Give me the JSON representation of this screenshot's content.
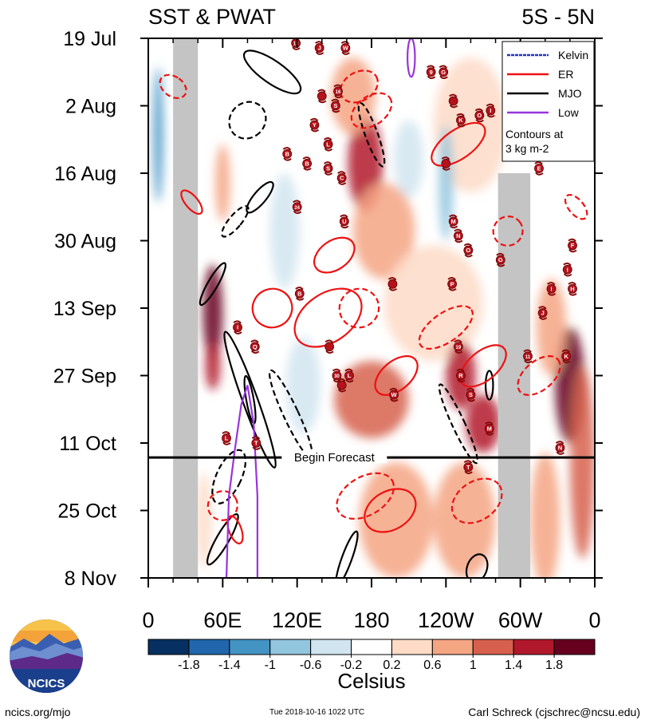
{
  "chart_data": {
    "type": "heatmap",
    "title_left": "SST & PWAT",
    "title_right": "5S - 5N",
    "x_ticks": [
      {
        "lon": 0,
        "label": "0"
      },
      {
        "lon": 60,
        "label": "60E"
      },
      {
        "lon": 120,
        "label": "120E"
      },
      {
        "lon": 180,
        "label": "180"
      },
      {
        "lon": 240,
        "label": "120W"
      },
      {
        "lon": 300,
        "label": "60W"
      },
      {
        "lon": 360,
        "label": "0"
      }
    ],
    "y_ticks": [
      {
        "day": 0,
        "label": "19 Jul"
      },
      {
        "day": 14,
        "label": "2 Aug"
      },
      {
        "day": 28,
        "label": "16 Aug"
      },
      {
        "day": 42,
        "label": "30 Aug"
      },
      {
        "day": 56,
        "label": "13 Sep"
      },
      {
        "day": 70,
        "label": "27 Sep"
      },
      {
        "day": 84,
        "label": "11 Oct"
      },
      {
        "day": 98,
        "label": "25 Oct"
      },
      {
        "day": 112,
        "label": "8 Nov"
      }
    ],
    "x_range": [
      0,
      360
    ],
    "y_range": [
      0,
      112
    ],
    "forecast_begin_day": 87,
    "forecast_label": "Begin Forecast",
    "land_bands": [
      {
        "lon_start": 20,
        "lon_end": 40,
        "day_start": 0,
        "day_end": 112
      },
      {
        "lon_start": 282,
        "lon_end": 308,
        "day_start": 28,
        "day_end": 112
      }
    ],
    "legend": {
      "entries": [
        {
          "label": "Kelvin",
          "color": "#2233cc"
        },
        {
          "label": "ER",
          "color": "#ee1111"
        },
        {
          "label": "MJO",
          "color": "#000000"
        },
        {
          "label": "Low",
          "color": "#9933dd"
        }
      ],
      "note": "Contours at\n3 kg m-2",
      "position": "top-right"
    },
    "colorbar": {
      "levels": [
        -1.8,
        -1.4,
        -1,
        -0.6,
        -0.2,
        0.2,
        0.6,
        1,
        1.4,
        1.8
      ],
      "labels": [
        "-1.8",
        "-1.4",
        "-1",
        "-0.6",
        "-0.2",
        "0.2",
        "0.6",
        "1",
        "1.4",
        "1.8"
      ],
      "colors": [
        "#053061",
        "#2166ac",
        "#4393c3",
        "#92c5de",
        "#d1e5f0",
        "#ffffff",
        "#fddbc7",
        "#f4a582",
        "#d6604d",
        "#b2182b",
        "#67001f"
      ],
      "units": "Celsius"
    },
    "anomaly_patches": [
      {
        "lon": 52,
        "day": 57,
        "r_lon": 8,
        "r_day": 10,
        "v": 1.9
      },
      {
        "lon": 52,
        "day": 68,
        "r_lon": 6,
        "r_day": 5,
        "v": 1.5
      },
      {
        "lon": 175,
        "day": 26,
        "r_lon": 14,
        "r_day": 10,
        "v": 1.5
      },
      {
        "lon": 165,
        "day": 12,
        "r_lon": 18,
        "r_day": 8,
        "v": 0.9
      },
      {
        "lon": 190,
        "day": 40,
        "r_lon": 25,
        "r_day": 10,
        "v": 0.7
      },
      {
        "lon": 260,
        "day": 18,
        "r_lon": 30,
        "r_day": 14,
        "v": 0.6
      },
      {
        "lon": 230,
        "day": 55,
        "r_lon": 40,
        "r_day": 12,
        "v": 0.5
      },
      {
        "lon": 180,
        "day": 75,
        "r_lon": 30,
        "r_day": 8,
        "v": 1.3
      },
      {
        "lon": 252,
        "day": 70,
        "r_lon": 12,
        "r_day": 7,
        "v": 1.6
      },
      {
        "lon": 270,
        "day": 80,
        "r_lon": 14,
        "r_day": 6,
        "v": 1.6
      },
      {
        "lon": 340,
        "day": 72,
        "r_lon": 12,
        "r_day": 12,
        "v": 2.0
      },
      {
        "lon": 325,
        "day": 60,
        "r_lon": 12,
        "r_day": 10,
        "v": 1.0
      },
      {
        "lon": 350,
        "day": 88,
        "r_lon": 10,
        "r_day": 20,
        "v": 1.4
      },
      {
        "lon": 200,
        "day": 100,
        "r_lon": 30,
        "r_day": 12,
        "v": 0.9
      },
      {
        "lon": 255,
        "day": 100,
        "r_lon": 25,
        "r_day": 12,
        "v": 0.8
      },
      {
        "lon": 320,
        "day": 100,
        "r_lon": 12,
        "r_day": 14,
        "v": 0.7
      },
      {
        "lon": 110,
        "day": 40,
        "r_lon": 12,
        "r_day": 12,
        "v": -0.4
      },
      {
        "lon": 240,
        "day": 30,
        "r_lon": 6,
        "r_day": 12,
        "v": -0.8
      },
      {
        "lon": 8,
        "day": 20,
        "r_lon": 4,
        "r_day": 14,
        "v": -1.2
      },
      {
        "lon": 125,
        "day": 72,
        "r_lon": 14,
        "r_day": 10,
        "v": -0.5
      },
      {
        "lon": 210,
        "day": 25,
        "r_lon": 12,
        "r_day": 8,
        "v": -0.3
      },
      {
        "lon": 60,
        "day": 30,
        "r_lon": 6,
        "r_day": 8,
        "v": 0.9
      },
      {
        "lon": 45,
        "day": 100,
        "r_lon": 6,
        "r_day": 10,
        "v": 0.4
      }
    ],
    "contours": [
      {
        "kind": "MJO",
        "lon": 100,
        "day": 7,
        "r_lon": 9,
        "r_day": 7,
        "rot": -55,
        "dashed": false
      },
      {
        "kind": "MJO",
        "lon": 80,
        "day": 17,
        "r_lon": 14,
        "r_day": 4,
        "rot": 45,
        "dashed": true
      },
      {
        "kind": "MJO",
        "lon": 180,
        "day": 20,
        "r_lon": 5,
        "r_day": 7,
        "rot": -20,
        "dashed": true
      },
      {
        "kind": "MJO",
        "lon": 90,
        "day": 33,
        "r_lon": 5,
        "r_day": 4,
        "rot": 40,
        "dashed": false
      },
      {
        "kind": "MJO",
        "lon": 70,
        "day": 38,
        "r_lon": 5,
        "r_day": 4,
        "rot": 40,
        "dashed": true
      },
      {
        "kind": "MJO",
        "lon": 52,
        "day": 51,
        "r_lon": 4,
        "r_day": 5,
        "rot": 30,
        "dashed": false
      },
      {
        "kind": "MJO",
        "lon": 82,
        "day": 75,
        "r_lon": 6,
        "r_day": 15,
        "rot": -20,
        "dashed": false
      },
      {
        "kind": "MJO",
        "lon": 82,
        "day": 75,
        "r_lon": 3,
        "r_day": 5,
        "rot": -10,
        "dashed": false
      },
      {
        "kind": "MJO",
        "lon": 115,
        "day": 78,
        "r_lon": 6,
        "r_day": 10,
        "rot": -25,
        "dashed": true
      },
      {
        "kind": "MJO",
        "lon": 65,
        "day": 91,
        "r_lon": 10,
        "r_day": 6,
        "rot": 25,
        "dashed": true
      },
      {
        "kind": "MJO",
        "lon": 60,
        "day": 104,
        "r_lon": 5,
        "r_day": 6,
        "rot": 30,
        "dashed": false
      },
      {
        "kind": "MJO",
        "lon": 160,
        "day": 108,
        "r_lon": 4,
        "r_day": 6,
        "rot": 20,
        "dashed": false
      },
      {
        "kind": "MJO",
        "lon": 250,
        "day": 80,
        "r_lon": 5,
        "r_day": 9,
        "rot": -25,
        "dashed": true
      },
      {
        "kind": "MJO",
        "lon": 275,
        "day": 72,
        "r_lon": 3,
        "r_day": 3,
        "rot": 0,
        "dashed": false
      },
      {
        "kind": "MJO",
        "lon": 265,
        "day": 110,
        "r_lon": 8,
        "r_day": 3,
        "rot": 20,
        "dashed": false
      },
      {
        "kind": "ER",
        "lon": 145,
        "day": 58,
        "r_lon": 30,
        "r_day": 5,
        "rot": -35,
        "dashed": false
      },
      {
        "kind": "ER",
        "lon": 150,
        "day": 45,
        "r_lon": 18,
        "r_day": 3,
        "rot": -35,
        "dashed": false
      },
      {
        "kind": "ER",
        "lon": 100,
        "day": 56,
        "r_lon": 16,
        "r_day": 4,
        "rot": -20,
        "dashed": false
      },
      {
        "kind": "ER",
        "lon": 170,
        "day": 56,
        "r_lon": 16,
        "r_day": 4,
        "rot": -30,
        "dashed": true
      },
      {
        "kind": "ER",
        "lon": 240,
        "day": 60,
        "r_lon": 25,
        "r_day": 3,
        "rot": -35,
        "dashed": true
      },
      {
        "kind": "ER",
        "lon": 270,
        "day": 68,
        "r_lon": 22,
        "r_day": 3,
        "rot": -40,
        "dashed": false
      },
      {
        "kind": "ER",
        "lon": 250,
        "day": 22,
        "r_lon": 25,
        "r_day": 3,
        "rot": -35,
        "dashed": false
      },
      {
        "kind": "ER",
        "lon": 180,
        "day": 15,
        "r_lon": 18,
        "r_day": 3,
        "rot": -35,
        "dashed": true
      },
      {
        "kind": "ER",
        "lon": 170,
        "day": 10,
        "r_lon": 16,
        "r_day": 3,
        "rot": -30,
        "dashed": true
      },
      {
        "kind": "ER",
        "lon": 20,
        "day": 10,
        "r_lon": 8,
        "r_day": 3,
        "rot": -55,
        "dashed": true
      },
      {
        "kind": "ER",
        "lon": 35,
        "day": 34,
        "r_lon": 5,
        "r_day": 3,
        "rot": -40,
        "dashed": false
      },
      {
        "kind": "ER",
        "lon": 195,
        "day": 98,
        "r_lon": 22,
        "r_day": 4,
        "rot": -30,
        "dashed": false
      },
      {
        "kind": "ER",
        "lon": 175,
        "day": 95,
        "r_lon": 25,
        "r_day": 4,
        "rot": -30,
        "dashed": true
      },
      {
        "kind": "ER",
        "lon": 265,
        "day": 96,
        "r_lon": 22,
        "r_day": 4,
        "rot": -35,
        "dashed": true
      },
      {
        "kind": "ER",
        "lon": 315,
        "day": 70,
        "r_lon": 20,
        "r_day": 3,
        "rot": -40,
        "dashed": true
      },
      {
        "kind": "ER",
        "lon": 60,
        "day": 97,
        "r_lon": 12,
        "r_day": 3,
        "rot": -30,
        "dashed": true
      },
      {
        "kind": "ER",
        "lon": 70,
        "day": 102,
        "r_lon": 5,
        "r_day": 3,
        "rot": -20,
        "dashed": false
      },
      {
        "kind": "ER",
        "lon": 200,
        "day": 70,
        "r_lon": 20,
        "r_day": 3,
        "rot": -40,
        "dashed": false
      },
      {
        "kind": "ER",
        "lon": 290,
        "day": 40,
        "r_lon": 12,
        "r_day": 3,
        "rot": -40,
        "dashed": true
      },
      {
        "kind": "ER",
        "lon": 345,
        "day": 35,
        "r_lon": 6,
        "r_day": 3,
        "rot": -40,
        "dashed": true
      },
      {
        "kind": "Low",
        "lon": 212,
        "day": 4,
        "r_lon": 3,
        "r_day": 4,
        "rot": 0,
        "dashed": false
      }
    ],
    "low_track": [
      [
        63,
        112
      ],
      [
        65,
        95
      ],
      [
        70,
        85
      ],
      [
        75,
        76
      ],
      [
        80,
        72
      ],
      [
        85,
        80
      ],
      [
        88,
        95
      ],
      [
        88,
        112
      ]
    ],
    "storm_markers": [
      {
        "lon": 119,
        "day": 1,
        "label": "13"
      },
      {
        "lon": 138,
        "day": 2,
        "label": "J"
      },
      {
        "lon": 159,
        "day": 2,
        "label": "W"
      },
      {
        "lon": 228,
        "day": 7,
        "label": "9"
      },
      {
        "lon": 238,
        "day": 7,
        "label": "G"
      },
      {
        "lon": 246,
        "day": 13,
        "label": ""
      },
      {
        "lon": 153,
        "day": 11,
        "label": "16"
      },
      {
        "lon": 151,
        "day": 14,
        "label": "S"
      },
      {
        "lon": 140,
        "day": 12,
        "label": ""
      },
      {
        "lon": 134,
        "day": 18,
        "label": "Y"
      },
      {
        "lon": 252,
        "day": 17,
        "label": "K"
      },
      {
        "lon": 267,
        "day": 16,
        "label": "O"
      },
      {
        "lon": 276,
        "day": 15,
        "label": "I"
      },
      {
        "lon": 145,
        "day": 22,
        "label": "L"
      },
      {
        "lon": 112,
        "day": 24,
        "label": "B"
      },
      {
        "lon": 128,
        "day": 26,
        "label": "B"
      },
      {
        "lon": 145,
        "day": 27,
        "label": "S"
      },
      {
        "lon": 156,
        "day": 29,
        "label": "C"
      },
      {
        "lon": 240,
        "day": 26,
        "label": ""
      },
      {
        "lon": 315,
        "day": 27,
        "label": "E"
      },
      {
        "lon": 120,
        "day": 35,
        "label": "24"
      },
      {
        "lon": 158,
        "day": 38,
        "label": "U"
      },
      {
        "lon": 246,
        "day": 38,
        "label": "M"
      },
      {
        "lon": 250,
        "day": 41,
        "label": "N"
      },
      {
        "lon": 258,
        "day": 44,
        "label": "O"
      },
      {
        "lon": 284,
        "day": 46,
        "label": "G"
      },
      {
        "lon": 342,
        "day": 43,
        "label": "F"
      },
      {
        "lon": 338,
        "day": 48,
        "label": "I"
      },
      {
        "lon": 197,
        "day": 51,
        "label": ""
      },
      {
        "lon": 245,
        "day": 51,
        "label": "P"
      },
      {
        "lon": 325,
        "day": 52,
        "label": "I"
      },
      {
        "lon": 342,
        "day": 52,
        "label": "H"
      },
      {
        "lon": 122,
        "day": 53,
        "label": "B"
      },
      {
        "lon": 318,
        "day": 57,
        "label": "J"
      },
      {
        "lon": 72,
        "day": 60,
        "label": "I"
      },
      {
        "lon": 86,
        "day": 64,
        "label": "Q"
      },
      {
        "lon": 146,
        "day": 64,
        "label": ""
      },
      {
        "lon": 250,
        "day": 64,
        "label": "19"
      },
      {
        "lon": 306,
        "day": 66,
        "label": "11"
      },
      {
        "lon": 337,
        "day": 66,
        "label": "K"
      },
      {
        "lon": 152,
        "day": 70,
        "label": "30"
      },
      {
        "lon": 162,
        "day": 70,
        "label": "L"
      },
      {
        "lon": 156,
        "day": 72,
        "label": ""
      },
      {
        "lon": 252,
        "day": 70,
        "label": "R"
      },
      {
        "lon": 198,
        "day": 74,
        "label": "W"
      },
      {
        "lon": 260,
        "day": 74,
        "label": "S"
      },
      {
        "lon": 275,
        "day": 81,
        "label": "M"
      },
      {
        "lon": 63,
        "day": 83,
        "label": "L"
      },
      {
        "lon": 87,
        "day": 84,
        "label": "T"
      },
      {
        "lon": 332,
        "day": 85,
        "label": "N"
      },
      {
        "lon": 258,
        "day": 89,
        "label": "T"
      }
    ]
  },
  "logo": {
    "text": "NCICS"
  },
  "footer": {
    "left": "ncics.org/mjo",
    "center": "Tue 2018-10-16 1022 UTC",
    "right": "Carl Schreck (cjschrec@ncsu.edu)"
  }
}
